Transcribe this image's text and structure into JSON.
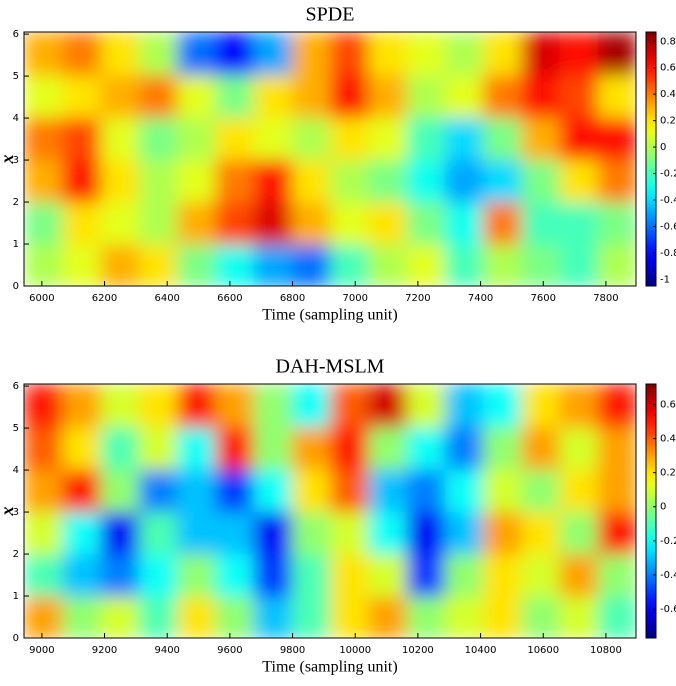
{
  "chart_data": [
    {
      "type": "heatmap",
      "title": "SPDE",
      "xlabel": "Time (sampling unit)",
      "ylabel": "x",
      "colormap": "jet",
      "xlim": [
        5943,
        7896
      ],
      "xticks": [
        6000,
        6200,
        6400,
        6600,
        6800,
        7000,
        7200,
        7400,
        7600,
        7800
      ],
      "ylim": [
        0,
        6.05
      ],
      "yticks": [
        0,
        1,
        2,
        3,
        4,
        5,
        6
      ],
      "clim": [
        -1.05,
        0.87
      ],
      "cticks": [
        -1,
        -0.8,
        -0.6,
        -0.4,
        -0.2,
        0,
        0.2,
        0.4,
        0.6,
        0.8
      ],
      "z": [
        [
          0.0,
          0.1,
          0.3,
          0.2,
          -0.1,
          -0.3,
          -0.5,
          -0.6,
          -0.2,
          0.0,
          0.1,
          -0.2,
          0.0,
          -0.1,
          -0.2,
          0.0
        ],
        [
          -0.1,
          0.2,
          0.1,
          0.0,
          0.3,
          0.5,
          0.7,
          0.3,
          0.1,
          0.2,
          -0.1,
          -0.3,
          0.4,
          -0.2,
          -0.2,
          -0.1
        ],
        [
          0.3,
          0.6,
          0.2,
          0.0,
          0.1,
          0.4,
          0.6,
          0.2,
          0.0,
          -0.1,
          -0.3,
          -0.5,
          -0.4,
          -0.1,
          0.2,
          0.4
        ],
        [
          0.4,
          0.5,
          0.1,
          -0.1,
          0.0,
          0.2,
          0.1,
          0.0,
          0.2,
          0.1,
          -0.2,
          -0.4,
          -0.1,
          0.3,
          0.6,
          0.6
        ],
        [
          0.1,
          0.2,
          0.3,
          0.4,
          0.1,
          -0.1,
          0.2,
          0.3,
          0.6,
          0.3,
          0.0,
          0.1,
          0.4,
          0.6,
          0.5,
          0.2
        ],
        [
          0.3,
          0.4,
          0.2,
          0.0,
          -0.6,
          -0.8,
          -0.5,
          0.3,
          0.5,
          0.2,
          0.1,
          0.0,
          0.2,
          0.7,
          0.6,
          0.8
        ]
      ]
    },
    {
      "type": "heatmap",
      "title": "DAH-MSLM",
      "xlabel": "Time (sampling unit)",
      "ylabel": "x",
      "colormap": "jet",
      "xlim": [
        8943,
        10896
      ],
      "xticks": [
        9000,
        9200,
        9400,
        9600,
        9800,
        10000,
        10200,
        10400,
        10600,
        10800
      ],
      "ylim": [
        0,
        6.05
      ],
      "yticks": [
        0,
        1,
        2,
        3,
        4,
        5,
        6
      ],
      "clim": [
        -0.77,
        0.72
      ],
      "cticks": [
        -0.6,
        -0.4,
        -0.2,
        0,
        0.2,
        0.4,
        0.6
      ],
      "z": [
        [
          0.3,
          0.0,
          0.1,
          -0.1,
          0.2,
          0.0,
          -0.3,
          -0.1,
          0.2,
          0.3,
          0.0,
          0.1,
          0.2,
          0.0,
          0.1,
          -0.1
        ],
        [
          -0.1,
          -0.3,
          -0.4,
          -0.2,
          0.0,
          -0.2,
          -0.5,
          -0.1,
          0.2,
          0.1,
          -0.5,
          0.0,
          0.2,
          0.1,
          0.3,
          0.0
        ],
        [
          0.1,
          -0.2,
          -0.6,
          -0.1,
          -0.3,
          -0.3,
          -0.6,
          0.0,
          0.1,
          -0.2,
          -0.6,
          -0.3,
          0.3,
          0.2,
          0.0,
          0.5
        ],
        [
          0.3,
          0.5,
          0.0,
          -0.4,
          -0.3,
          -0.5,
          -0.2,
          0.2,
          0.4,
          -0.3,
          -0.4,
          -0.2,
          0.1,
          0.0,
          0.2,
          0.3
        ],
        [
          0.4,
          0.2,
          -0.1,
          0.1,
          -0.2,
          0.5,
          0.0,
          0.3,
          0.5,
          0.0,
          -0.2,
          -0.4,
          0.0,
          0.3,
          0.1,
          0.3
        ],
        [
          0.5,
          0.3,
          0.1,
          0.2,
          0.5,
          0.3,
          0.0,
          -0.2,
          0.4,
          0.6,
          0.1,
          -0.3,
          -0.2,
          0.2,
          0.3,
          0.5
        ]
      ]
    }
  ]
}
